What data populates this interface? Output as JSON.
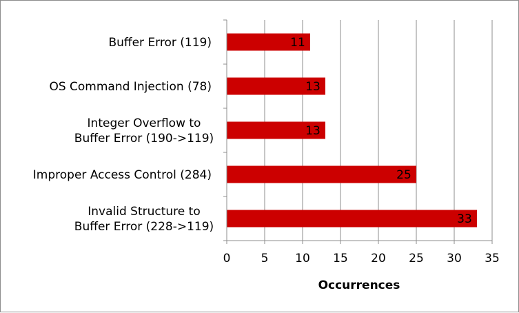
{
  "chart_data": {
    "type": "bar",
    "orientation": "horizontal",
    "categories": [
      [
        "Buffer Error (119)"
      ],
      [
        "OS Command Injection (78)"
      ],
      [
        "Integer Overflow to",
        "Buffer Error (190->119)"
      ],
      [
        "Improper Access Control (284)"
      ],
      [
        "Invalid Structure to",
        "Buffer Error (228->119)"
      ]
    ],
    "values": [
      11,
      13,
      13,
      25,
      33
    ],
    "xlabel": "Occurrences",
    "xlim": [
      0,
      35
    ],
    "xticks": [
      0,
      5,
      10,
      15,
      20,
      25,
      30,
      35
    ],
    "grid": "vertical",
    "data_labels": true,
    "bar_color": "#cc0000",
    "grid_color": "#8c8c8c"
  }
}
